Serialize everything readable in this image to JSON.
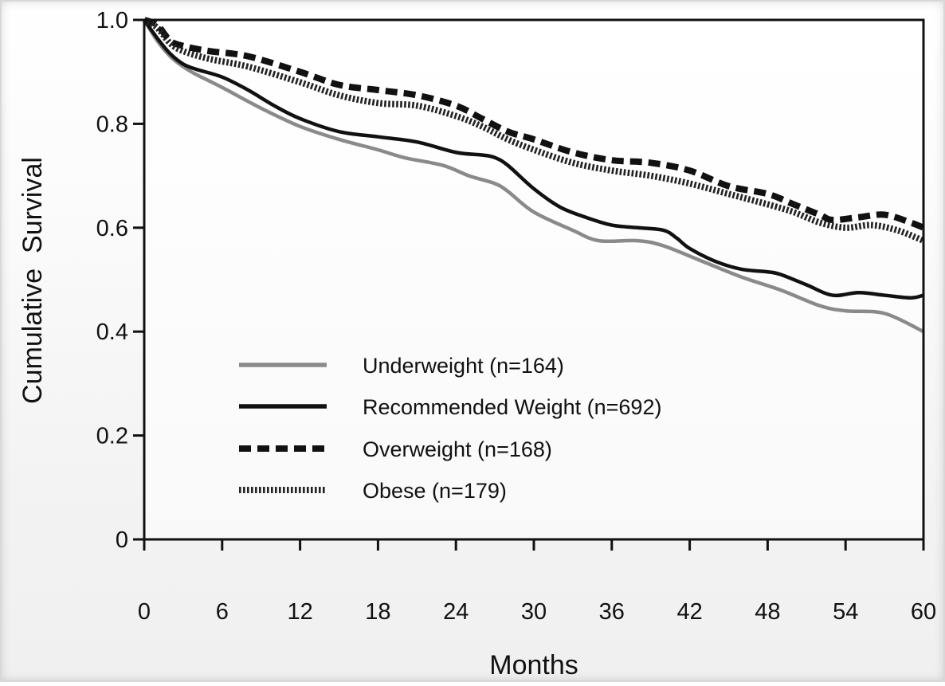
{
  "chart_data": {
    "type": "line",
    "title": "",
    "xlabel": "Months",
    "ylabel": "Cumulative  Survival",
    "xlim": [
      0,
      60
    ],
    "ylim": [
      0,
      1.0
    ],
    "x_ticks": [
      0,
      6,
      12,
      18,
      24,
      30,
      36,
      42,
      48,
      54,
      60
    ],
    "x_tick_labels": [
      "0",
      "6",
      "12",
      "18",
      "24",
      "30",
      "36",
      "42",
      "48",
      "54",
      "60"
    ],
    "y_ticks": [
      0,
      0.2,
      0.4,
      0.6,
      0.8,
      1.0
    ],
    "y_tick_labels": [
      "0",
      "0.2",
      "0.4",
      "0.6",
      "0.8",
      "1.0"
    ],
    "grid": false,
    "legend_position": "lower-left",
    "series": [
      {
        "name": "Underweight (n=164)",
        "style": "solid",
        "color": "#8a8a8a",
        "points": [
          [
            0,
            1.0
          ],
          [
            1,
            0.96
          ],
          [
            2,
            0.93
          ],
          [
            3,
            0.91
          ],
          [
            4,
            0.895
          ],
          [
            6,
            0.87
          ],
          [
            9,
            0.83
          ],
          [
            12,
            0.795
          ],
          [
            15,
            0.77
          ],
          [
            18,
            0.75
          ],
          [
            20,
            0.735
          ],
          [
            23,
            0.72
          ],
          [
            25,
            0.7
          ],
          [
            27,
            0.685
          ],
          [
            28,
            0.67
          ],
          [
            30,
            0.63
          ],
          [
            33,
            0.595
          ],
          [
            35,
            0.575
          ],
          [
            38,
            0.575
          ],
          [
            40,
            0.565
          ],
          [
            43,
            0.535
          ],
          [
            46,
            0.505
          ],
          [
            49,
            0.48
          ],
          [
            52,
            0.45
          ],
          [
            54,
            0.44
          ],
          [
            57,
            0.435
          ],
          [
            60,
            0.4
          ]
        ]
      },
      {
        "name": "Recommended Weight (n=692)",
        "style": "solid",
        "color": "#111111",
        "points": [
          [
            0,
            1.0
          ],
          [
            1,
            0.965
          ],
          [
            2,
            0.935
          ],
          [
            3,
            0.915
          ],
          [
            4,
            0.905
          ],
          [
            6,
            0.89
          ],
          [
            8,
            0.865
          ],
          [
            10,
            0.835
          ],
          [
            12,
            0.81
          ],
          [
            15,
            0.785
          ],
          [
            18,
            0.775
          ],
          [
            21,
            0.765
          ],
          [
            24,
            0.745
          ],
          [
            26,
            0.74
          ],
          [
            27,
            0.735
          ],
          [
            28,
            0.72
          ],
          [
            30,
            0.675
          ],
          [
            32,
            0.64
          ],
          [
            34,
            0.62
          ],
          [
            36,
            0.605
          ],
          [
            38,
            0.6
          ],
          [
            40,
            0.595
          ],
          [
            41,
            0.58
          ],
          [
            42,
            0.56
          ],
          [
            44,
            0.535
          ],
          [
            46,
            0.52
          ],
          [
            48,
            0.515
          ],
          [
            49,
            0.51
          ],
          [
            51,
            0.49
          ],
          [
            53,
            0.47
          ],
          [
            55,
            0.475
          ],
          [
            57,
            0.47
          ],
          [
            59,
            0.465
          ],
          [
            60,
            0.47
          ]
        ]
      },
      {
        "name": "Overweight (n=168)",
        "style": "dashed",
        "color": "#111111",
        "points": [
          [
            0,
            1.0
          ],
          [
            1,
            0.99
          ],
          [
            2,
            0.96
          ],
          [
            3,
            0.95
          ],
          [
            5,
            0.94
          ],
          [
            8,
            0.93
          ],
          [
            12,
            0.9
          ],
          [
            15,
            0.875
          ],
          [
            18,
            0.865
          ],
          [
            21,
            0.855
          ],
          [
            24,
            0.835
          ],
          [
            26,
            0.81
          ],
          [
            28,
            0.785
          ],
          [
            30,
            0.77
          ],
          [
            33,
            0.745
          ],
          [
            36,
            0.73
          ],
          [
            39,
            0.725
          ],
          [
            42,
            0.71
          ],
          [
            45,
            0.68
          ],
          [
            48,
            0.665
          ],
          [
            50,
            0.645
          ],
          [
            52,
            0.625
          ],
          [
            53,
            0.615
          ],
          [
            55,
            0.62
          ],
          [
            57,
            0.625
          ],
          [
            59,
            0.61
          ],
          [
            60,
            0.6
          ]
        ]
      },
      {
        "name": "Obese (n=179)",
        "style": "dotted",
        "color": "#222222",
        "points": [
          [
            0,
            1.0
          ],
          [
            1,
            0.985
          ],
          [
            2,
            0.955
          ],
          [
            3,
            0.94
          ],
          [
            5,
            0.925
          ],
          [
            8,
            0.91
          ],
          [
            12,
            0.88
          ],
          [
            15,
            0.855
          ],
          [
            18,
            0.84
          ],
          [
            21,
            0.835
          ],
          [
            24,
            0.815
          ],
          [
            26,
            0.795
          ],
          [
            28,
            0.77
          ],
          [
            30,
            0.75
          ],
          [
            33,
            0.725
          ],
          [
            36,
            0.71
          ],
          [
            39,
            0.7
          ],
          [
            42,
            0.685
          ],
          [
            45,
            0.665
          ],
          [
            48,
            0.645
          ],
          [
            50,
            0.63
          ],
          [
            52,
            0.61
          ],
          [
            54,
            0.6
          ],
          [
            56,
            0.605
          ],
          [
            58,
            0.595
          ],
          [
            60,
            0.575
          ]
        ]
      }
    ]
  }
}
